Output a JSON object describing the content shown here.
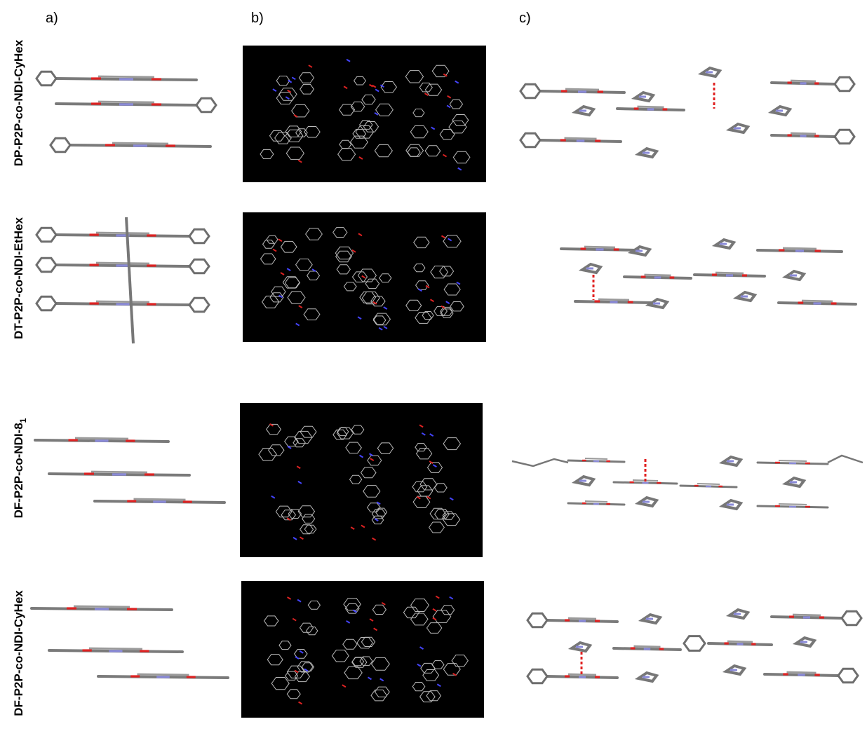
{
  "columns": [
    "a)",
    "b)",
    "c)"
  ],
  "rows": [
    {
      "label": "DP-P2P-co-NDI-CyHex"
    },
    {
      "label": "DT-P2P-co-NDI-EtHex"
    },
    {
      "label": "DF-P2P-co-NDI-8",
      "subscript": "1"
    },
    {
      "label": "DF-P2P-co-NDI-CyHex"
    }
  ]
}
